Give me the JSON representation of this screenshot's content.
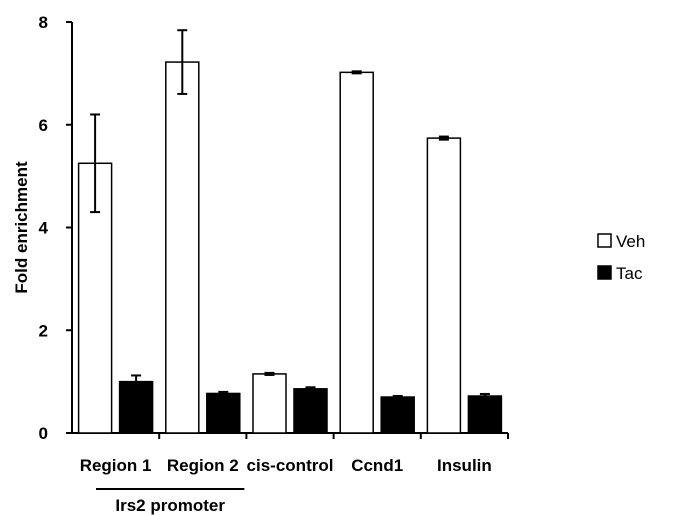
{
  "chart_data": {
    "type": "bar",
    "title": "",
    "xlabel": "",
    "ylabel": "Fold enrichment",
    "ylim": [
      0,
      8
    ],
    "yticks": [
      0,
      2,
      4,
      6,
      8
    ],
    "grid": false,
    "legend_position": "right",
    "categories": [
      "Region 1",
      "Region 2",
      "cis-control",
      "Ccnd1",
      "Insulin"
    ],
    "group_annotation": {
      "label": "Irs2 promoter",
      "categories": [
        "Region 1",
        "Region 2"
      ]
    },
    "series": [
      {
        "name": "Veh",
        "color": "#ffffff",
        "values": [
          5.25,
          7.22,
          1.15,
          7.02,
          5.74
        ],
        "errors": [
          0.95,
          0.62,
          0.02,
          0.02,
          0.03
        ]
      },
      {
        "name": "Tac",
        "color": "#000000",
        "values": [
          1.0,
          0.77,
          0.86,
          0.7,
          0.72
        ],
        "errors": [
          0.12,
          0.03,
          0.03,
          0.02,
          0.04
        ]
      }
    ]
  }
}
